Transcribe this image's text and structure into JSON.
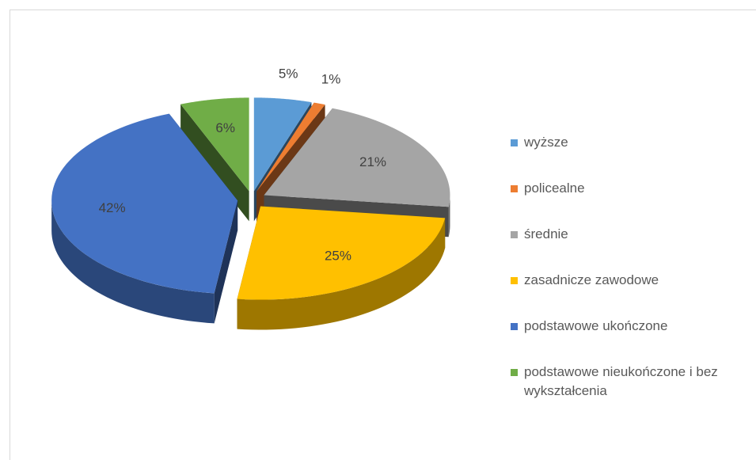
{
  "chart_data": {
    "type": "pie",
    "categories": [
      "wyższe",
      "policealne",
      "średnie",
      "zasadnicze zawodowe",
      "podstawowe ukończone",
      "podstawowe nieukończone i bez wykształcenia"
    ],
    "values": [
      5,
      1,
      21,
      25,
      42,
      6
    ],
    "value_labels": [
      "5%",
      "1%",
      "21%",
      "25%",
      "42%",
      "6%"
    ],
    "colors": [
      "#5b9bd5",
      "#ed7d31",
      "#a5a5a5",
      "#ffc000",
      "#4472c4",
      "#70ad47"
    ],
    "legend": "right"
  }
}
